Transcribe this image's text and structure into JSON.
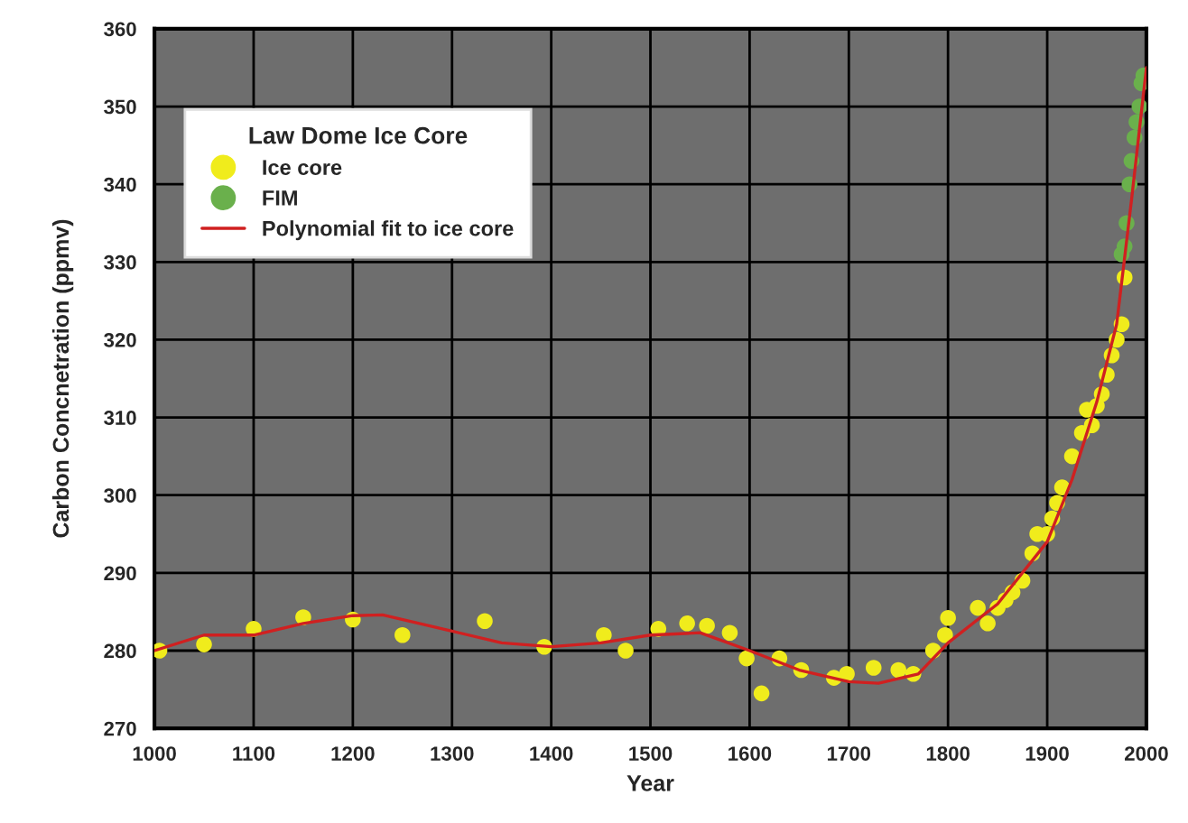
{
  "chart_data": {
    "type": "scatter",
    "xlabel": "Year",
    "ylabel": "Carbon Concnetration (ppmv)",
    "legend_title": "Law Dome Ice Core",
    "xlim": [
      1000,
      2000
    ],
    "xticks": [
      1000,
      1100,
      1200,
      1300,
      1400,
      1500,
      1600,
      1700,
      1800,
      1900,
      2000
    ],
    "ylim": [
      270,
      360
    ],
    "yticks": [
      270,
      280,
      290,
      300,
      310,
      320,
      330,
      340,
      350,
      360
    ],
    "grid": true,
    "legend": "top left",
    "marker": "circle",
    "series": [
      {
        "name": "Ice core",
        "color": "#f0ec1c",
        "x": [
          1005,
          1050,
          1100,
          1150,
          1200,
          1250,
          1333,
          1393,
          1453,
          1475,
          1508,
          1537,
          1557,
          1580,
          1597,
          1612,
          1630,
          1652,
          1685,
          1698,
          1725,
          1750,
          1765,
          1785,
          1797,
          1800,
          1830,
          1840,
          1850,
          1858,
          1865,
          1875,
          1885,
          1890,
          1900,
          1905,
          1910,
          1915,
          1925,
          1935,
          1940,
          1945,
          1950,
          1955,
          1960,
          1965,
          1970,
          1975,
          1978
        ],
        "values": [
          280,
          280.8,
          282.8,
          284.3,
          284,
          282,
          283.8,
          280.5,
          282,
          280,
          282.8,
          283.5,
          283.2,
          282.3,
          279,
          274.5,
          279,
          277.5,
          276.5,
          277,
          277.8,
          277.5,
          277,
          280,
          282,
          284.2,
          285.5,
          283.5,
          285.5,
          286.5,
          287.5,
          289,
          292.5,
          295,
          295,
          297,
          299,
          301,
          305,
          308,
          311,
          309,
          311.5,
          313,
          315.5,
          318,
          320,
          322,
          328
        ]
      },
      {
        "name": "FIM",
        "color": "#6ab04c",
        "x": [
          1975,
          1978,
          1980,
          1983,
          1985,
          1988,
          1990,
          1993,
          1995,
          1997
        ],
        "values": [
          331,
          332,
          335,
          340,
          343,
          346,
          348,
          350,
          353,
          354
        ]
      },
      {
        "name": "Polynomial fit to ice core",
        "type": "line",
        "color": "#d02020",
        "marker": "none",
        "x": [
          1000,
          1050,
          1100,
          1150,
          1200,
          1230,
          1300,
          1350,
          1400,
          1450,
          1500,
          1550,
          1600,
          1650,
          1700,
          1730,
          1770,
          1800,
          1850,
          1900,
          1925,
          1950,
          1970,
          1985,
          2000
        ],
        "values": [
          280,
          282,
          282,
          283.5,
          284.5,
          284.6,
          282.5,
          281,
          280.5,
          281,
          282,
          282.3,
          280,
          277.5,
          276,
          275.8,
          277,
          281,
          286,
          294,
          302,
          312,
          322,
          338,
          355
        ]
      }
    ]
  }
}
